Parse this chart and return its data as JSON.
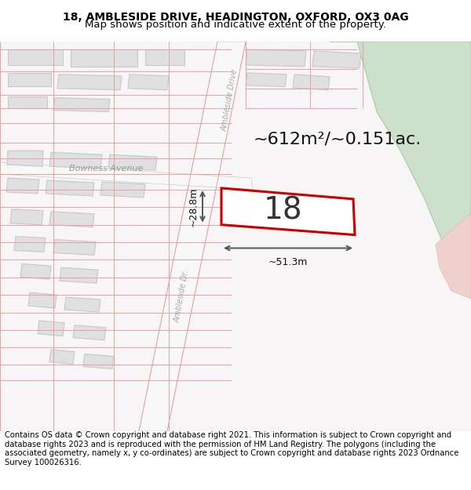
{
  "title_line1": "18, AMBLESIDE DRIVE, HEADINGTON, OXFORD, OX3 0AG",
  "title_line2": "Map shows position and indicative extent of the property.",
  "footer_text": "Contains OS data © Crown copyright and database right 2021. This information is subject to Crown copyright and database rights 2023 and is reproduced with the permission of HM Land Registry. The polygons (including the associated geometry, namely x, y co-ordinates) are subject to Crown copyright and database rights 2023 Ordnance Survey 100026316.",
  "area_label": "~612m²/~0.151ac.",
  "number_label": "18",
  "dim_width": "~51.3m",
  "dim_height": "~28.8m",
  "road_label1": "Bowness Avenue",
  "road_label2": "Ambleside Drive",
  "road_label3": "Ambleside Dr...",
  "bg_color": "#ffffff",
  "map_bg": "#f7f5f5",
  "road_fill": "#e8e8e8",
  "road_stroke": "#cccccc",
  "plot_stroke": "#dd0000",
  "plot_fill": "#ffffff",
  "green_fill": "#cce0cc",
  "green_edge": "#aaccaa",
  "pink_fill": "#f0d0cc",
  "pink_edge": "#ddbbbb",
  "road_line_color": "#e8a0a0",
  "dim_line_color": "#555555",
  "block_fill": "#e0e0e0",
  "block_edge": "#c8c8c8",
  "title_fontsize": 10,
  "footer_fontsize": 7.2,
  "area_fontsize": 16,
  "number_fontsize": 28,
  "road_label_fontsize": 8,
  "dim_fontsize": 9
}
